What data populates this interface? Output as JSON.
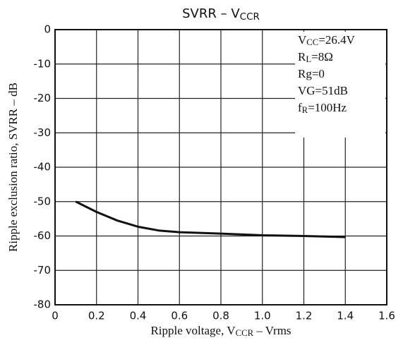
{
  "chart_data": {
    "type": "line",
    "title": [
      {
        "text": "SVRR – V"
      },
      {
        "text": "CCR",
        "sub": true
      }
    ],
    "xlabel": [
      {
        "text": "Ripple voltage, V"
      },
      {
        "text": "CCR",
        "sub": true
      },
      {
        "text": " – Vrms"
      }
    ],
    "ylabel": "Ripple exclusion ratio, SVRR – dB",
    "annotations": [
      [
        {
          "text": "V"
        },
        {
          "text": "CC",
          "sub": true
        },
        {
          "text": "=26.4V"
        }
      ],
      [
        {
          "text": "R"
        },
        {
          "text": "L",
          "sub": true
        },
        {
          "text": "=8Ω"
        }
      ],
      [
        {
          "text": "Rg=0"
        }
      ],
      [
        {
          "text": "VG=51dB"
        }
      ],
      [
        {
          "text": "f"
        },
        {
          "text": "R",
          "sub": true
        },
        {
          "text": "=100Hz"
        }
      ]
    ],
    "series": [
      {
        "color": "#111111",
        "x": [
          0.1,
          0.2,
          0.3,
          0.4,
          0.5,
          0.6,
          0.8,
          1.0,
          1.2,
          1.4
        ],
        "values": [
          -50,
          -53,
          -55.5,
          -57.3,
          -58.4,
          -58.9,
          -59.3,
          -59.8,
          -60,
          -60.3
        ]
      }
    ],
    "xlim": [
      0,
      1.6
    ],
    "xticks": [
      0,
      0.2,
      0.4,
      0.6,
      0.8,
      {
        "value": 1,
        "label": "1.0"
      },
      1.2,
      1.4,
      1.6
    ],
    "ylim": [
      -80,
      0
    ],
    "yticks": [
      0,
      -10,
      -20,
      -30,
      -40,
      -50,
      -60,
      -70,
      -80
    ],
    "grid": true
  }
}
